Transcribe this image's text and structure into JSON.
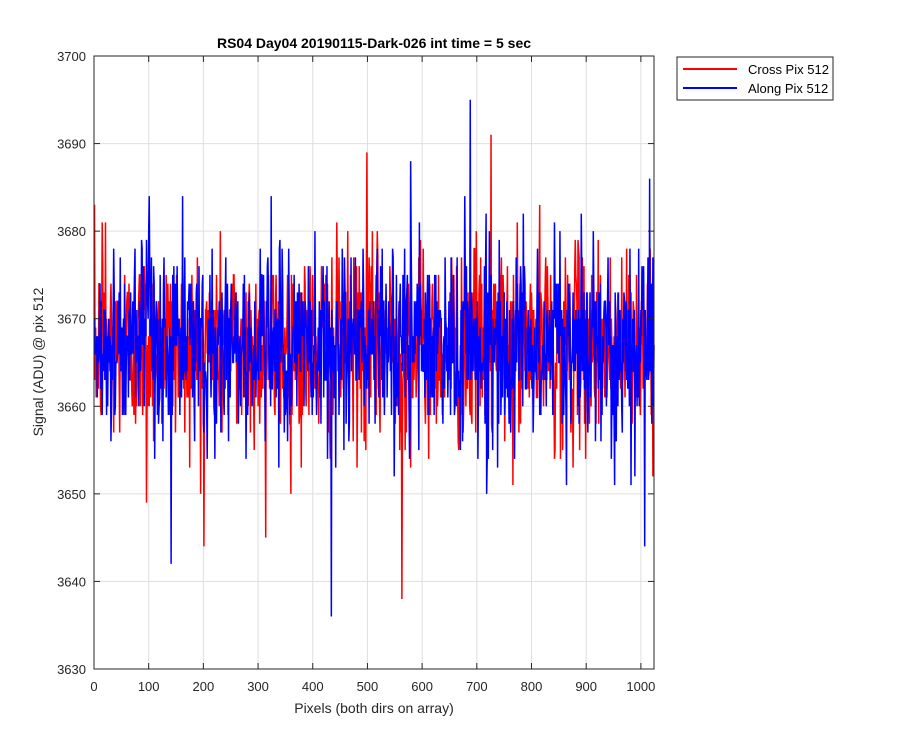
{
  "chart_data": {
    "type": "line",
    "title": "RS04 Day04 20190115-Dark-026 int time = 5 sec",
    "xlabel": "Pixels (both dirs on array)",
    "ylabel": "Signal (ADU) @ pix 512",
    "xlim": [
      0,
      1024
    ],
    "ylim": [
      3630,
      3700
    ],
    "xticks": [
      0,
      100,
      200,
      300,
      400,
      500,
      600,
      700,
      800,
      900,
      1000
    ],
    "yticks": [
      3630,
      3640,
      3650,
      3660,
      3670,
      3680,
      3690,
      3700
    ],
    "xtick_labels": [
      "0",
      "100",
      "200",
      "300",
      "400",
      "500",
      "600",
      "700",
      "800",
      "900",
      "1000"
    ],
    "ytick_labels": [
      "3630",
      "3640",
      "3650",
      "3660",
      "3670",
      "3680",
      "3690",
      "3700"
    ],
    "grid": true,
    "legend_position": "outside top-right",
    "noise_model": "values are a reconstruction of visible noise: centered near 3667 with most points between 3655 and 3680; notable extremes listed per series",
    "series": [
      {
        "name": "Cross Pix 512",
        "color": "#ff0000",
        "n_points": 1024,
        "mean": 3667,
        "std": 7,
        "extremes": [
          {
            "x": 562,
            "y": 3638
          },
          {
            "x": 725,
            "y": 3691
          },
          {
            "x": 498,
            "y": 3689
          },
          {
            "x": 200,
            "y": 3644
          },
          {
            "x": 313,
            "y": 3645
          },
          {
            "x": 14,
            "y": 3681
          },
          {
            "x": 20,
            "y": 3681
          },
          {
            "x": 95,
            "y": 3649
          }
        ]
      },
      {
        "name": "Along Pix 512",
        "color": "#0000ff",
        "n_points": 1024,
        "mean": 3667,
        "std": 7,
        "extremes": [
          {
            "x": 433,
            "y": 3636
          },
          {
            "x": 687,
            "y": 3695
          },
          {
            "x": 140,
            "y": 3642
          },
          {
            "x": 1015,
            "y": 3686
          },
          {
            "x": 1006,
            "y": 3644
          },
          {
            "x": 578,
            "y": 3688
          },
          {
            "x": 100,
            "y": 3684
          }
        ]
      }
    ]
  }
}
